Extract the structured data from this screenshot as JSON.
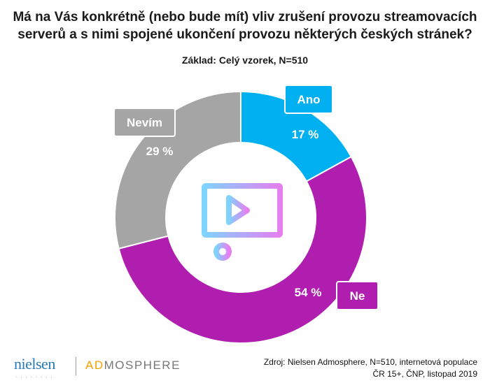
{
  "title_line1": "Má na Vás konkrétně (nebo bude mít) vliv zrušení provozu streamovacích",
  "title_line2": "serverů a s nimi spojené ukončení provozu některých českých stránek?",
  "subtitle": "Základ: Celý vzorek, N=510",
  "chart_data": {
    "type": "pie",
    "donut": true,
    "title": "Má na Vás konkrétně (nebo bude mít) vliv zrušení provozu streamovacích serverů a s nimi spojené ukončení provozu některých českých stránek?",
    "subtitle": "Základ: Celý vzorek, N=510",
    "categories": [
      "Ano",
      "Ne",
      "Nevím"
    ],
    "values": [
      17,
      54,
      29
    ],
    "value_labels": [
      "17 %",
      "54 %",
      "29 %"
    ],
    "colors": [
      "#00b0f0",
      "#b01eb0",
      "#a5a5a5"
    ],
    "center_icon": "video-player-icon"
  },
  "source_line1": "Zdroj: Nielsen Admosphere, N=510, internetová populace",
  "source_line2": "ČR 15+, ČNP, listopad 2019",
  "logo": {
    "nielsen": "nielsen",
    "admosphere_ad": "AD",
    "admosphere_rest": "MOSPHERE"
  }
}
